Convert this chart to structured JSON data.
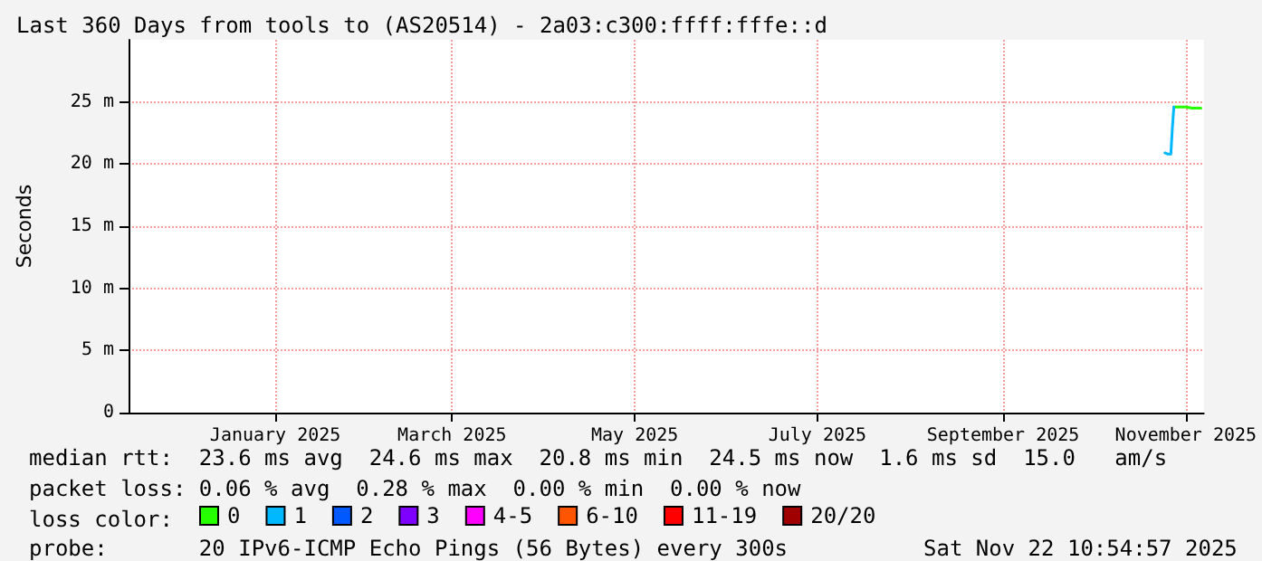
{
  "chart_data": {
    "type": "line",
    "title": "Last 360 Days from tools to (AS20514) - 2a03:c300:ffff:fffe::d",
    "ylabel": "Seconds",
    "xlim": [
      "2024-11-13",
      "2025-11-07"
    ],
    "xticks": [
      {
        "value": "2025-01-01",
        "label": "January 2025"
      },
      {
        "value": "2025-03-01",
        "label": "March 2025"
      },
      {
        "value": "2025-05-01",
        "label": "May 2025"
      },
      {
        "value": "2025-07-01",
        "label": "July 2025"
      },
      {
        "value": "2025-09-01",
        "label": "September 2025"
      },
      {
        "value": "2025-11-01",
        "label": "November 2025"
      }
    ],
    "ylim": [
      0,
      30
    ],
    "yticks": [
      0,
      {
        "value": 5,
        "label": "5 m"
      },
      {
        "value": 10,
        "label": "10 m"
      },
      {
        "value": 15,
        "label": "15 m"
      },
      {
        "value": 20,
        "label": "20 m"
      },
      {
        "value": 25,
        "label": "25 m"
      }
    ],
    "grid": true,
    "legend": "bottom",
    "marker": "none",
    "line_style": "solid",
    "series": [
      {
        "name": "0",
        "color": "#26ff00",
        "x": [
          "2025-10-28",
          "2025-10-30",
          "2025-11-01",
          "2025-11-03",
          "2025-11-05",
          "2025-11-06"
        ],
        "values": [
          24.6,
          24.6,
          24.6,
          24.5,
          24.5,
          24.5
        ]
      },
      {
        "name": "1",
        "color": "#00b8ff",
        "x": [
          "2025-10-25",
          "2025-10-26",
          "2025-10-27",
          "2025-10-27T12:00",
          "2025-10-28"
        ],
        "values": [
          20.9,
          20.8,
          20.8,
          22.9,
          24.6
        ]
      },
      {
        "name": "2",
        "color": "#0059ff"
      },
      {
        "name": "3",
        "color": "#7e00ff"
      },
      {
        "name": "4-5",
        "color": "#ff00ff"
      },
      {
        "name": "6-10",
        "color": "#ff5500"
      },
      {
        "name": "11-19",
        "color": "#ff0000"
      },
      {
        "name": "20/20",
        "color": "#a10000"
      }
    ],
    "annotations": [
      "median rtt:  23.6 ms avg  24.6 ms max  20.8 ms min  24.5 ms now  1.6 ms sd  15.0   am/s",
      "packet loss: 0.06 % avg  0.28 % max  0.00 % min  0.00 % now",
      "loss color:",
      "probe:       20 IPv6-ICMP Echo Pings (56 Bytes) every 300s",
      "Sat Nov 22 10:54:57 2025"
    ]
  }
}
